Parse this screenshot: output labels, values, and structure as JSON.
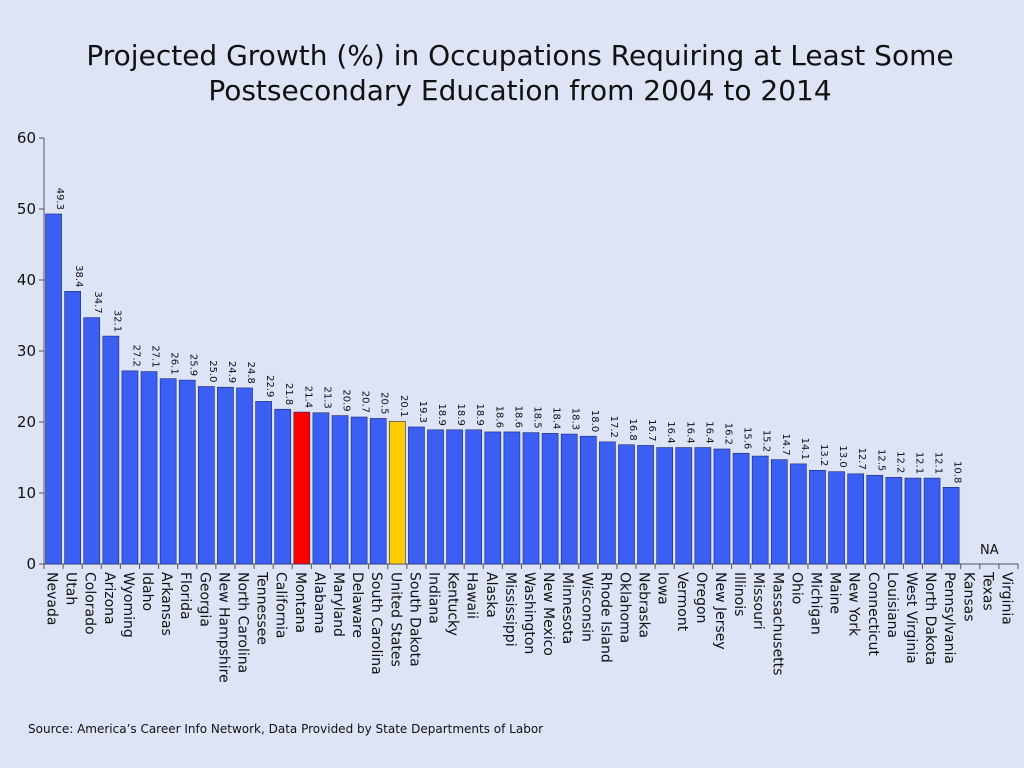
{
  "chart_data": {
    "type": "bar",
    "title_lines": [
      "Projected Growth (%) in Occupations Requiring at Least Some",
      "Postsecondary Education from 2004 to 2014"
    ],
    "xlabel": "",
    "ylabel": "",
    "ylim": [
      0,
      60
    ],
    "yticks": [
      0,
      10,
      20,
      30,
      40,
      50,
      60
    ],
    "grid": false,
    "legend": "none",
    "categories": [
      "Nevada",
      "Utah",
      "Colorado",
      "Arizona",
      "Wyoming",
      "Idaho",
      "Arkansas",
      "Florida",
      "Georgia",
      "New Hampshire",
      "North Carolina",
      "Tennessee",
      "California",
      "Montana",
      "Alabama",
      "Maryland",
      "Delaware",
      "South Carolina",
      "United States",
      "South Dakota",
      "Indiana",
      "Kentucky",
      "Hawaii",
      "Alaska",
      "Mississippi",
      "Washington",
      "New Mexico",
      "Minnesota",
      "Wisconsin",
      "Rhode Island",
      "Oklahoma",
      "Nebraska",
      "Iowa",
      "Vermont",
      "Oregon",
      "New Jersey",
      "Illinois",
      "Missouri",
      "Massachusetts",
      "Ohio",
      "Michigan",
      "Maine",
      "New York",
      "Connecticut",
      "Louisiana",
      "West Virginia",
      "North Dakota",
      "Pennsylvania",
      "Kansas",
      "Texas",
      "Virginia"
    ],
    "values": [
      49.3,
      38.4,
      34.7,
      32.1,
      27.2,
      27.1,
      26.1,
      25.9,
      25.0,
      24.9,
      24.8,
      22.9,
      21.8,
      21.4,
      21.3,
      20.9,
      20.7,
      20.5,
      20.1,
      19.3,
      18.9,
      18.9,
      18.9,
      18.6,
      18.6,
      18.5,
      18.4,
      18.3,
      18.0,
      17.2,
      16.8,
      16.7,
      16.4,
      16.4,
      16.4,
      16.2,
      15.6,
      15.2,
      14.7,
      14.1,
      13.2,
      13.0,
      12.7,
      12.5,
      12.2,
      12.1,
      12.1,
      10.8,
      null,
      null,
      null
    ],
    "value_labels": [
      "49.3",
      "38.4",
      "34.7",
      "32.1",
      "27.2",
      "27.1",
      "26.1",
      "25.9",
      "25.0",
      "24.9",
      "24.8",
      "22.9",
      "21.8",
      "21.4",
      "21.3",
      "20.9",
      "20.7",
      "20.5",
      "20.1",
      "19.3",
      "18.9",
      "18.9",
      "18.9",
      "18.6",
      "18.6",
      "18.5",
      "18.4",
      "18.3",
      "18.0",
      "17.2",
      "16.8",
      "16.7",
      "16.4",
      "16.4",
      "16.4",
      "16.2",
      "15.6",
      "15.2",
      "14.7",
      "14.1",
      "13.2",
      "13.0",
      "12.7",
      "12.5",
      "12.2",
      "12.1",
      "12.1",
      "10.8",
      "",
      "",
      ""
    ],
    "na_label": "NA",
    "colors": {
      "default": "#3b5ff2",
      "Montana": "#ff0000",
      "United States": "#ffcc00"
    }
  },
  "source": "Source:  America’s Career Info Network, Data Provided by State Departments of Labor"
}
